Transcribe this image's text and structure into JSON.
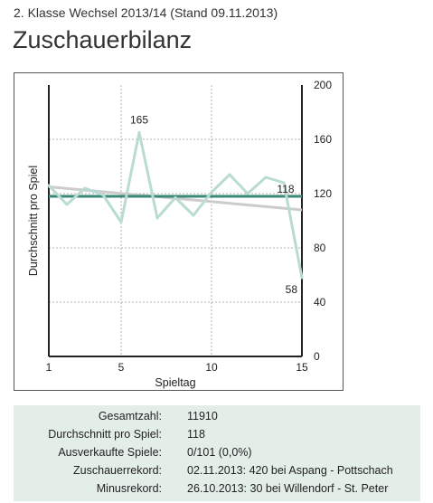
{
  "header": {
    "subtitle": "2. Klasse Wechsel 2013/14 (Stand 09.11.2013)",
    "title": "Zuschauerbilanz"
  },
  "chart_data": {
    "type": "line",
    "xlabel": "Spieltag",
    "ylabel": "Durchschnitt pro Spiel",
    "x": [
      1,
      2,
      3,
      4,
      5,
      6,
      7,
      8,
      9,
      10,
      11,
      12,
      13,
      14,
      15
    ],
    "series": [
      {
        "values": [
          126,
          112,
          124,
          119,
          99,
          165,
          102,
          117,
          104,
          121,
          134,
          120,
          132,
          128,
          58
        ],
        "color": "#b9dcd2"
      }
    ],
    "average": {
      "value": 118,
      "color": "#3a8a7a"
    },
    "trend": {
      "start": 125,
      "end": 108,
      "color": "#cccccc"
    },
    "xlim": [
      1,
      15
    ],
    "ylim": [
      0,
      200
    ],
    "xticks": [
      1,
      5,
      10,
      15
    ],
    "yticks": [
      0,
      40,
      80,
      120,
      160,
      200
    ],
    "annotations": [
      {
        "x": 6,
        "y": 165,
        "text": "165"
      },
      {
        "x": 14,
        "y": 118,
        "text": "118"
      },
      {
        "x": 15,
        "y": 58,
        "text": "58"
      }
    ],
    "grid": true,
    "y_axis_side": "right"
  },
  "stats": [
    {
      "label": "Gesamtzahl:",
      "value": "11910"
    },
    {
      "label": "Durchschnitt pro Spiel:",
      "value": "118"
    },
    {
      "label": "Ausverkaufte Spiele:",
      "value": "0/101 (0,0%)"
    },
    {
      "label": "Zuschauerrekord:",
      "value": "02.11.2013: 420 bei Aspang - Pottschach"
    },
    {
      "label": "Minusrekord:",
      "value": "26.10.2013: 30 bei Willendorf - St. Peter"
    }
  ]
}
